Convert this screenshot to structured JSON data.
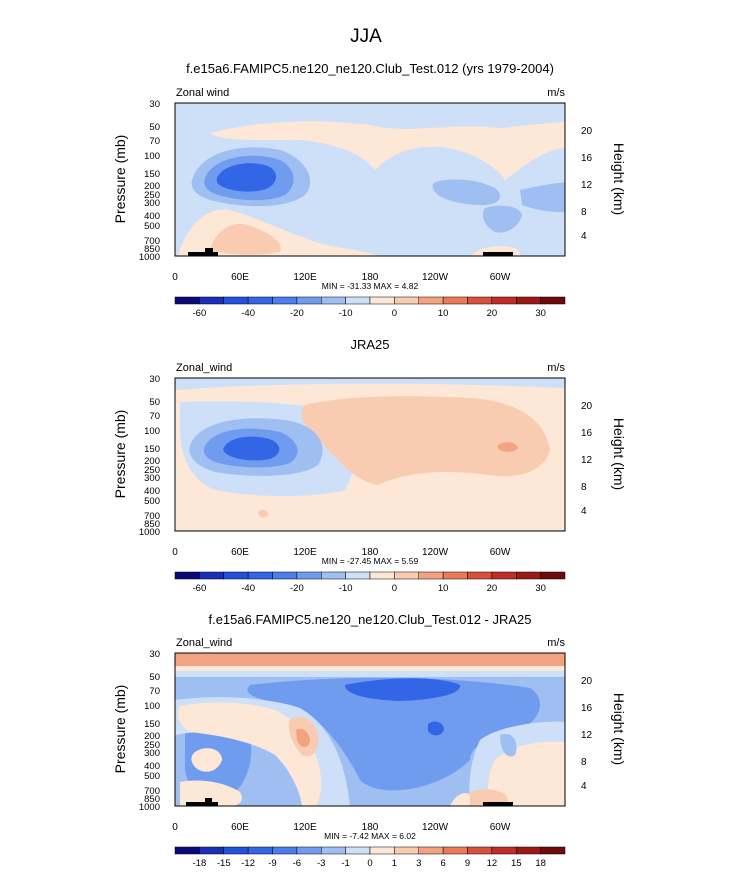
{
  "page": {
    "title": "JJA"
  },
  "chart_data": [
    {
      "type": "contour",
      "title": "f.e15a6.FAMIPC5.ne120_ne120.Club_Test.012 (yrs 1979-2004)",
      "left_label": "Zonal wind",
      "right_label": "m/s",
      "ylabel": "Pressure (mb)",
      "y2label": "Height (km)",
      "x_ticks": [
        "0",
        "60E",
        "120E",
        "180",
        "120W",
        "60W"
      ],
      "y_ticks": [
        "30",
        "50",
        "70",
        "100",
        "150",
        "200",
        "250",
        "300",
        "400",
        "500",
        "700",
        "850",
        "1000"
      ],
      "height_ticks": [
        "20",
        "16",
        "12",
        "8",
        "4"
      ],
      "stats": "MIN = -31.33  MAX =  4.82",
      "colorbar_labels": [
        "-60",
        "-40",
        "-20",
        "-10",
        "0",
        "10",
        "20",
        "30"
      ],
      "colorbar_colors": [
        "#0a0a7a",
        "#1a2fb8",
        "#2350dc",
        "#3266e6",
        "#4a7eec",
        "#6f9cef",
        "#9fbff2",
        "#cde0f8",
        "#fde7d6",
        "#f9cbb1",
        "#f3a382",
        "#ea7a58",
        "#d9503a",
        "#bf2d24",
        "#9c1a16",
        "#6e0a0a"
      ]
    },
    {
      "type": "contour",
      "title": "JRA25",
      "left_label": "Zonal_wind",
      "right_label": "m/s",
      "ylabel": "Pressure (mb)",
      "y2label": "Height (km)",
      "x_ticks": [
        "0",
        "60E",
        "120E",
        "180",
        "120W",
        "60W"
      ],
      "y_ticks": [
        "30",
        "50",
        "70",
        "100",
        "150",
        "200",
        "250",
        "300",
        "400",
        "500",
        "700",
        "850",
        "1000"
      ],
      "height_ticks": [
        "20",
        "16",
        "12",
        "8",
        "4"
      ],
      "stats": "MIN = -27.45  MAX =  5.59",
      "colorbar_labels": [
        "-60",
        "-40",
        "-20",
        "-10",
        "0",
        "10",
        "20",
        "30"
      ],
      "colorbar_colors": [
        "#0a0a7a",
        "#1a2fb8",
        "#2350dc",
        "#3266e6",
        "#4a7eec",
        "#6f9cef",
        "#9fbff2",
        "#cde0f8",
        "#fde7d6",
        "#f9cbb1",
        "#f3a382",
        "#ea7a58",
        "#d9503a",
        "#bf2d24",
        "#9c1a16",
        "#6e0a0a"
      ]
    },
    {
      "type": "contour",
      "title": "f.e15a6.FAMIPC5.ne120_ne120.Club_Test.012 - JRA25",
      "left_label": "Zonal_wind",
      "right_label": "m/s",
      "ylabel": "Pressure (mb)",
      "y2label": "Height (km)",
      "x_ticks": [
        "0",
        "60E",
        "120E",
        "180",
        "120W",
        "60W"
      ],
      "y_ticks": [
        "30",
        "50",
        "70",
        "100",
        "150",
        "200",
        "250",
        "300",
        "400",
        "500",
        "700",
        "850",
        "1000"
      ],
      "height_ticks": [
        "20",
        "16",
        "12",
        "8",
        "4"
      ],
      "stats": "MIN = -7.42  MAX =  6.02",
      "colorbar_labels": [
        "-18",
        "-15",
        "-12",
        "-9",
        "-6",
        "-3",
        "-1",
        "0",
        "1",
        "3",
        "6",
        "9",
        "12",
        "15",
        "18"
      ],
      "colorbar_colors": [
        "#0a0a7a",
        "#1a2fb8",
        "#2350dc",
        "#3266e6",
        "#4a7eec",
        "#6f9cef",
        "#9fbff2",
        "#cde0f8",
        "#fde7d6",
        "#f9cbb1",
        "#f3a382",
        "#ea7a58",
        "#d9503a",
        "#bf2d24",
        "#9c1a16",
        "#6e0a0a"
      ]
    }
  ]
}
